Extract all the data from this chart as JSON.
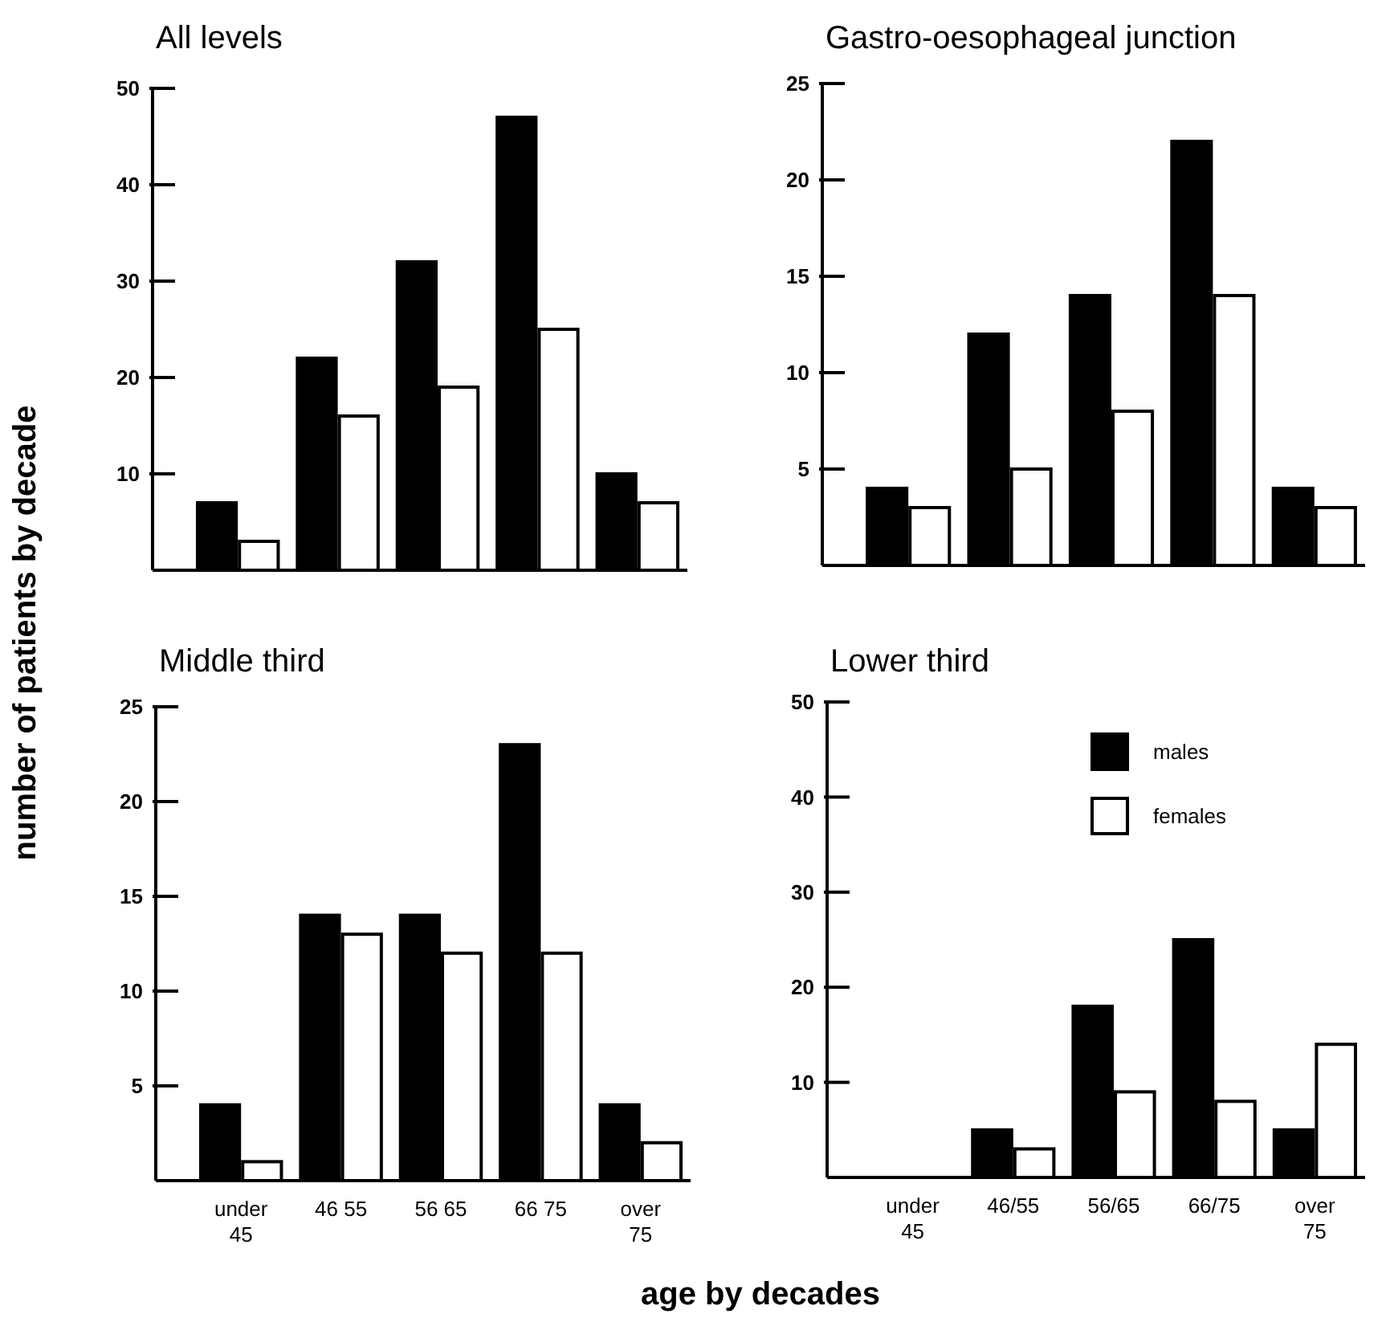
{
  "chart_data": [
    {
      "type": "bar",
      "title": "All levels",
      "ylabel": "number of patients by decade",
      "categories": [
        null,
        null,
        null,
        null,
        null
      ],
      "ylim": [
        0,
        50
      ],
      "yticks": [
        10,
        20,
        30,
        40,
        50
      ],
      "tick_labels": "y",
      "series": [
        {
          "color": "#000000",
          "values": [
            7,
            22,
            32,
            47,
            10
          ]
        },
        {
          "color": "#ffffff",
          "values": [
            3,
            16,
            19,
            25,
            7
          ]
        }
      ]
    },
    {
      "type": "bar",
      "title": "Gastro-oesophageal junction",
      "categories": [
        null,
        null,
        null,
        null,
        null
      ],
      "ylim": [
        0,
        25
      ],
      "yticks": [
        5,
        10,
        15,
        20,
        25
      ],
      "tick_labels": "y",
      "series": [
        {
          "color": "#000000",
          "values": [
            4,
            12,
            14,
            22,
            4
          ]
        },
        {
          "color": "#ffffff",
          "values": [
            3,
            5,
            8,
            14,
            3
          ]
        }
      ]
    },
    {
      "type": "bar",
      "title": "Middle third",
      "xlabel": "age by decades",
      "categories": [
        "under\n45",
        "46 55",
        "56 65",
        "66 75",
        "over\n75"
      ],
      "ylim": [
        0,
        25
      ],
      "yticks": [
        5,
        10,
        15,
        20,
        25
      ],
      "series": [
        {
          "color": "#000000",
          "values": [
            4,
            14,
            14,
            23,
            4
          ]
        },
        {
          "color": "#ffffff",
          "values": [
            1,
            13,
            12,
            12,
            2
          ]
        }
      ]
    },
    {
      "type": "bar",
      "title": "Lower third",
      "categories": [
        "under\n45",
        "46/55",
        "56/65",
        "66/75",
        "over\n75"
      ],
      "ylim": [
        0,
        50
      ],
      "yticks": [
        10,
        20,
        30,
        40,
        50
      ],
      "legend": "top right",
      "series": [
        {
          "name": "males",
          "color": "#000000",
          "values": [
            0,
            5,
            18,
            25,
            5
          ]
        },
        {
          "name": "females",
          "color": "#ffffff",
          "values": [
            0,
            3,
            9,
            8,
            14
          ]
        }
      ]
    }
  ]
}
